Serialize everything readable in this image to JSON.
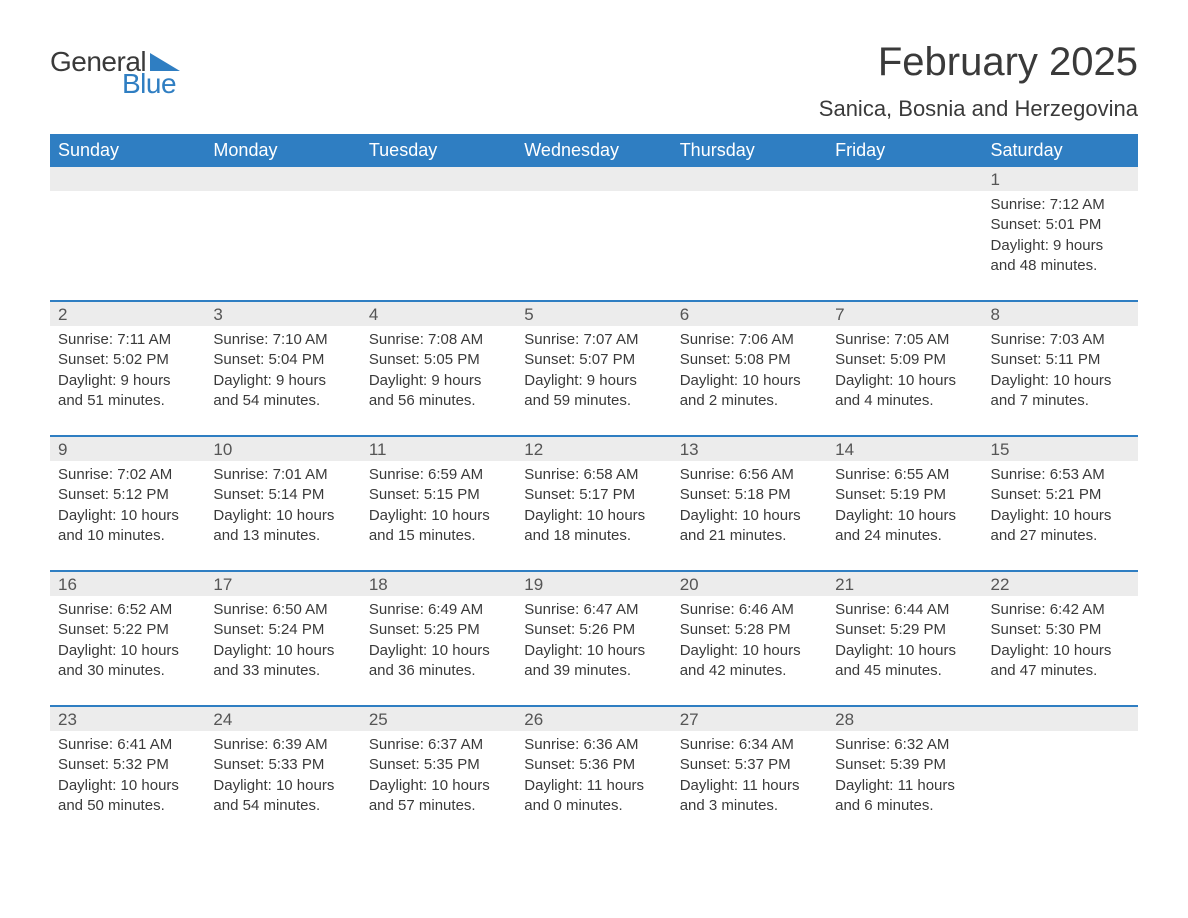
{
  "logo": {
    "text_general": "General",
    "text_blue": "Blue",
    "triangle_color": "#2f7ec2"
  },
  "title": {
    "month": "February 2025",
    "location": "Sanica, Bosnia and Herzegovina"
  },
  "colors": {
    "header_bg": "#2f7ec2",
    "header_text": "#ffffff",
    "day_band_bg": "#ececec",
    "week_border": "#2f7ec2",
    "body_text": "#3a3a3a",
    "background": "#ffffff"
  },
  "typography": {
    "month_title_fontsize": 40,
    "location_fontsize": 22,
    "dow_fontsize": 18,
    "daynum_fontsize": 17,
    "body_fontsize": 15,
    "logo_fontsize": 28
  },
  "days_of_week": [
    "Sunday",
    "Monday",
    "Tuesday",
    "Wednesday",
    "Thursday",
    "Friday",
    "Saturday"
  ],
  "weeks": [
    [
      null,
      null,
      null,
      null,
      null,
      null,
      {
        "n": "1",
        "sunrise": "Sunrise: 7:12 AM",
        "sunset": "Sunset: 5:01 PM",
        "day1": "Daylight: 9 hours",
        "day2": "and 48 minutes."
      }
    ],
    [
      {
        "n": "2",
        "sunrise": "Sunrise: 7:11 AM",
        "sunset": "Sunset: 5:02 PM",
        "day1": "Daylight: 9 hours",
        "day2": "and 51 minutes."
      },
      {
        "n": "3",
        "sunrise": "Sunrise: 7:10 AM",
        "sunset": "Sunset: 5:04 PM",
        "day1": "Daylight: 9 hours",
        "day2": "and 54 minutes."
      },
      {
        "n": "4",
        "sunrise": "Sunrise: 7:08 AM",
        "sunset": "Sunset: 5:05 PM",
        "day1": "Daylight: 9 hours",
        "day2": "and 56 minutes."
      },
      {
        "n": "5",
        "sunrise": "Sunrise: 7:07 AM",
        "sunset": "Sunset: 5:07 PM",
        "day1": "Daylight: 9 hours",
        "day2": "and 59 minutes."
      },
      {
        "n": "6",
        "sunrise": "Sunrise: 7:06 AM",
        "sunset": "Sunset: 5:08 PM",
        "day1": "Daylight: 10 hours",
        "day2": "and 2 minutes."
      },
      {
        "n": "7",
        "sunrise": "Sunrise: 7:05 AM",
        "sunset": "Sunset: 5:09 PM",
        "day1": "Daylight: 10 hours",
        "day2": "and 4 minutes."
      },
      {
        "n": "8",
        "sunrise": "Sunrise: 7:03 AM",
        "sunset": "Sunset: 5:11 PM",
        "day1": "Daylight: 10 hours",
        "day2": "and 7 minutes."
      }
    ],
    [
      {
        "n": "9",
        "sunrise": "Sunrise: 7:02 AM",
        "sunset": "Sunset: 5:12 PM",
        "day1": "Daylight: 10 hours",
        "day2": "and 10 minutes."
      },
      {
        "n": "10",
        "sunrise": "Sunrise: 7:01 AM",
        "sunset": "Sunset: 5:14 PM",
        "day1": "Daylight: 10 hours",
        "day2": "and 13 minutes."
      },
      {
        "n": "11",
        "sunrise": "Sunrise: 6:59 AM",
        "sunset": "Sunset: 5:15 PM",
        "day1": "Daylight: 10 hours",
        "day2": "and 15 minutes."
      },
      {
        "n": "12",
        "sunrise": "Sunrise: 6:58 AM",
        "sunset": "Sunset: 5:17 PM",
        "day1": "Daylight: 10 hours",
        "day2": "and 18 minutes."
      },
      {
        "n": "13",
        "sunrise": "Sunrise: 6:56 AM",
        "sunset": "Sunset: 5:18 PM",
        "day1": "Daylight: 10 hours",
        "day2": "and 21 minutes."
      },
      {
        "n": "14",
        "sunrise": "Sunrise: 6:55 AM",
        "sunset": "Sunset: 5:19 PM",
        "day1": "Daylight: 10 hours",
        "day2": "and 24 minutes."
      },
      {
        "n": "15",
        "sunrise": "Sunrise: 6:53 AM",
        "sunset": "Sunset: 5:21 PM",
        "day1": "Daylight: 10 hours",
        "day2": "and 27 minutes."
      }
    ],
    [
      {
        "n": "16",
        "sunrise": "Sunrise: 6:52 AM",
        "sunset": "Sunset: 5:22 PM",
        "day1": "Daylight: 10 hours",
        "day2": "and 30 minutes."
      },
      {
        "n": "17",
        "sunrise": "Sunrise: 6:50 AM",
        "sunset": "Sunset: 5:24 PM",
        "day1": "Daylight: 10 hours",
        "day2": "and 33 minutes."
      },
      {
        "n": "18",
        "sunrise": "Sunrise: 6:49 AM",
        "sunset": "Sunset: 5:25 PM",
        "day1": "Daylight: 10 hours",
        "day2": "and 36 minutes."
      },
      {
        "n": "19",
        "sunrise": "Sunrise: 6:47 AM",
        "sunset": "Sunset: 5:26 PM",
        "day1": "Daylight: 10 hours",
        "day2": "and 39 minutes."
      },
      {
        "n": "20",
        "sunrise": "Sunrise: 6:46 AM",
        "sunset": "Sunset: 5:28 PM",
        "day1": "Daylight: 10 hours",
        "day2": "and 42 minutes."
      },
      {
        "n": "21",
        "sunrise": "Sunrise: 6:44 AM",
        "sunset": "Sunset: 5:29 PM",
        "day1": "Daylight: 10 hours",
        "day2": "and 45 minutes."
      },
      {
        "n": "22",
        "sunrise": "Sunrise: 6:42 AM",
        "sunset": "Sunset: 5:30 PM",
        "day1": "Daylight: 10 hours",
        "day2": "and 47 minutes."
      }
    ],
    [
      {
        "n": "23",
        "sunrise": "Sunrise: 6:41 AM",
        "sunset": "Sunset: 5:32 PM",
        "day1": "Daylight: 10 hours",
        "day2": "and 50 minutes."
      },
      {
        "n": "24",
        "sunrise": "Sunrise: 6:39 AM",
        "sunset": "Sunset: 5:33 PM",
        "day1": "Daylight: 10 hours",
        "day2": "and 54 minutes."
      },
      {
        "n": "25",
        "sunrise": "Sunrise: 6:37 AM",
        "sunset": "Sunset: 5:35 PM",
        "day1": "Daylight: 10 hours",
        "day2": "and 57 minutes."
      },
      {
        "n": "26",
        "sunrise": "Sunrise: 6:36 AM",
        "sunset": "Sunset: 5:36 PM",
        "day1": "Daylight: 11 hours",
        "day2": "and 0 minutes."
      },
      {
        "n": "27",
        "sunrise": "Sunrise: 6:34 AM",
        "sunset": "Sunset: 5:37 PM",
        "day1": "Daylight: 11 hours",
        "day2": "and 3 minutes."
      },
      {
        "n": "28",
        "sunrise": "Sunrise: 6:32 AM",
        "sunset": "Sunset: 5:39 PM",
        "day1": "Daylight: 11 hours",
        "day2": "and 6 minutes."
      },
      null
    ]
  ]
}
